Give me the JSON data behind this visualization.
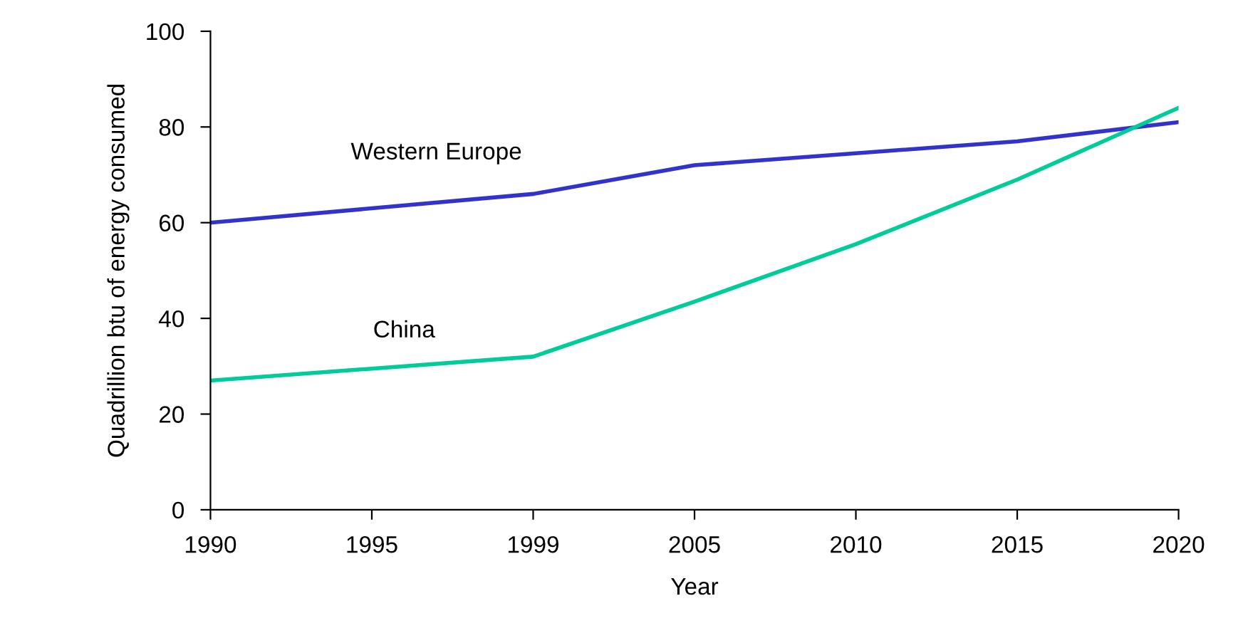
{
  "chart_data": {
    "type": "line",
    "xlabel": "Year",
    "ylabel": "Quadrillion btu of energy consumed",
    "categories": [
      "1990",
      "1995",
      "1999",
      "2005",
      "2010",
      "2015",
      "2020"
    ],
    "series": [
      {
        "name": "Western Europe",
        "color": "#3333cc",
        "values": [
          60,
          63,
          66,
          72,
          74.5,
          77,
          81
        ]
      },
      {
        "name": "China",
        "color": "#00cc99",
        "values": [
          27,
          29.5,
          32,
          43.5,
          55.5,
          69,
          84
        ]
      }
    ],
    "ylim": [
      0,
      100
    ],
    "yticks": [
      0,
      20,
      40,
      60,
      80,
      100
    ],
    "grid": false,
    "legend": false,
    "marker": "none",
    "line_style": "solid"
  }
}
